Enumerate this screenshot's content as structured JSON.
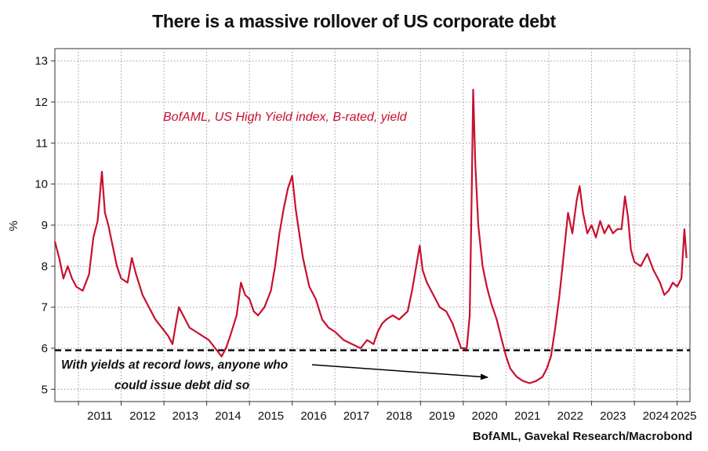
{
  "title": "There is a massive rollover of US corporate debt",
  "source": "BofAML, Gavekal Research/Macrobond",
  "colors": {
    "series": "#c8102e",
    "threshold": "#000000",
    "grid": "#9a9a9a"
  },
  "chart_data": {
    "type": "line",
    "title": "There is a massive rollover of US corporate debt",
    "ylabel": "%",
    "xlabel": "",
    "ylim": [
      4.7,
      13.3
    ],
    "yticks": [
      5,
      6,
      7,
      8,
      9,
      10,
      11,
      12,
      13
    ],
    "xlim": [
      2010.45,
      2025.3
    ],
    "xticks": [
      "2011",
      "2012",
      "2013",
      "2014",
      "2015",
      "2016",
      "2017",
      "2018",
      "2019",
      "2020",
      "2021",
      "2022",
      "2023",
      "2024",
      "2025"
    ],
    "grid": true,
    "series": [
      {
        "name": "BofAML, US High Yield index, B-rated, yield",
        "color": "#c8102e",
        "points": [
          [
            2010.45,
            8.6
          ],
          [
            2010.55,
            8.2
          ],
          [
            2010.65,
            7.7
          ],
          [
            2010.75,
            8.0
          ],
          [
            2010.85,
            7.7
          ],
          [
            2010.95,
            7.5
          ],
          [
            2011.1,
            7.4
          ],
          [
            2011.25,
            7.8
          ],
          [
            2011.35,
            8.7
          ],
          [
            2011.45,
            9.1
          ],
          [
            2011.55,
            10.3
          ],
          [
            2011.62,
            9.3
          ],
          [
            2011.7,
            9.0
          ],
          [
            2011.78,
            8.6
          ],
          [
            2011.9,
            8.0
          ],
          [
            2012.0,
            7.7
          ],
          [
            2012.15,
            7.6
          ],
          [
            2012.25,
            8.2
          ],
          [
            2012.35,
            7.8
          ],
          [
            2012.5,
            7.3
          ],
          [
            2012.65,
            7.0
          ],
          [
            2012.8,
            6.7
          ],
          [
            2012.95,
            6.5
          ],
          [
            2013.1,
            6.3
          ],
          [
            2013.2,
            6.1
          ],
          [
            2013.28,
            6.6
          ],
          [
            2013.35,
            7.0
          ],
          [
            2013.45,
            6.8
          ],
          [
            2013.6,
            6.5
          ],
          [
            2013.75,
            6.4
          ],
          [
            2013.9,
            6.3
          ],
          [
            2014.05,
            6.2
          ],
          [
            2014.2,
            6.0
          ],
          [
            2014.35,
            5.8
          ],
          [
            2014.45,
            6.0
          ],
          [
            2014.55,
            6.3
          ],
          [
            2014.7,
            6.8
          ],
          [
            2014.8,
            7.6
          ],
          [
            2014.9,
            7.3
          ],
          [
            2015.0,
            7.2
          ],
          [
            2015.1,
            6.9
          ],
          [
            2015.2,
            6.8
          ],
          [
            2015.35,
            7.0
          ],
          [
            2015.5,
            7.4
          ],
          [
            2015.6,
            8.0
          ],
          [
            2015.7,
            8.8
          ],
          [
            2015.8,
            9.4
          ],
          [
            2015.9,
            9.9
          ],
          [
            2016.0,
            10.2
          ],
          [
            2016.08,
            9.4
          ],
          [
            2016.15,
            8.9
          ],
          [
            2016.25,
            8.2
          ],
          [
            2016.4,
            7.5
          ],
          [
            2016.55,
            7.2
          ],
          [
            2016.7,
            6.7
          ],
          [
            2016.85,
            6.5
          ],
          [
            2017.0,
            6.4
          ],
          [
            2017.2,
            6.2
          ],
          [
            2017.4,
            6.1
          ],
          [
            2017.6,
            6.0
          ],
          [
            2017.75,
            6.2
          ],
          [
            2017.9,
            6.1
          ],
          [
            2018.0,
            6.4
          ],
          [
            2018.1,
            6.6
          ],
          [
            2018.2,
            6.7
          ],
          [
            2018.35,
            6.8
          ],
          [
            2018.5,
            6.7
          ],
          [
            2018.6,
            6.8
          ],
          [
            2018.7,
            6.9
          ],
          [
            2018.8,
            7.4
          ],
          [
            2018.9,
            8.0
          ],
          [
            2018.98,
            8.5
          ],
          [
            2019.05,
            7.9
          ],
          [
            2019.15,
            7.6
          ],
          [
            2019.3,
            7.3
          ],
          [
            2019.45,
            7.0
          ],
          [
            2019.6,
            6.9
          ],
          [
            2019.75,
            6.6
          ],
          [
            2019.85,
            6.3
          ],
          [
            2019.95,
            6.0
          ],
          [
            2020.08,
            6.0
          ],
          [
            2020.15,
            6.8
          ],
          [
            2020.2,
            10.0
          ],
          [
            2020.23,
            12.3
          ],
          [
            2020.28,
            10.5
          ],
          [
            2020.35,
            9.0
          ],
          [
            2020.45,
            8.0
          ],
          [
            2020.55,
            7.5
          ],
          [
            2020.65,
            7.1
          ],
          [
            2020.78,
            6.7
          ],
          [
            2020.9,
            6.2
          ],
          [
            2021.0,
            5.8
          ],
          [
            2021.1,
            5.5
          ],
          [
            2021.25,
            5.3
          ],
          [
            2021.4,
            5.2
          ],
          [
            2021.55,
            5.15
          ],
          [
            2021.7,
            5.2
          ],
          [
            2021.85,
            5.3
          ],
          [
            2021.95,
            5.5
          ],
          [
            2022.05,
            5.8
          ],
          [
            2022.15,
            6.5
          ],
          [
            2022.25,
            7.3
          ],
          [
            2022.35,
            8.3
          ],
          [
            2022.45,
            9.3
          ],
          [
            2022.55,
            8.8
          ],
          [
            2022.65,
            9.6
          ],
          [
            2022.72,
            9.95
          ],
          [
            2022.8,
            9.3
          ],
          [
            2022.9,
            8.8
          ],
          [
            2023.0,
            9.0
          ],
          [
            2023.1,
            8.7
          ],
          [
            2023.2,
            9.1
          ],
          [
            2023.3,
            8.8
          ],
          [
            2023.4,
            9.0
          ],
          [
            2023.5,
            8.8
          ],
          [
            2023.6,
            8.9
          ],
          [
            2023.7,
            8.9
          ],
          [
            2023.78,
            9.7
          ],
          [
            2023.85,
            9.2
          ],
          [
            2023.92,
            8.4
          ],
          [
            2024.0,
            8.1
          ],
          [
            2024.15,
            8.0
          ],
          [
            2024.3,
            8.3
          ],
          [
            2024.45,
            7.9
          ],
          [
            2024.6,
            7.6
          ],
          [
            2024.7,
            7.3
          ],
          [
            2024.8,
            7.4
          ],
          [
            2024.9,
            7.6
          ],
          [
            2025.0,
            7.5
          ],
          [
            2025.1,
            7.7
          ],
          [
            2025.17,
            8.9
          ],
          [
            2025.22,
            8.2
          ]
        ]
      }
    ],
    "reference_line": {
      "y": 5.95,
      "style": "dashed",
      "color": "#000000"
    },
    "annotations": {
      "series_label": "BofAML, US High Yield index, B-rated, yield",
      "note_line1": "With yields at record lows, anyone who",
      "note_line2": "could issue debt did so"
    }
  }
}
